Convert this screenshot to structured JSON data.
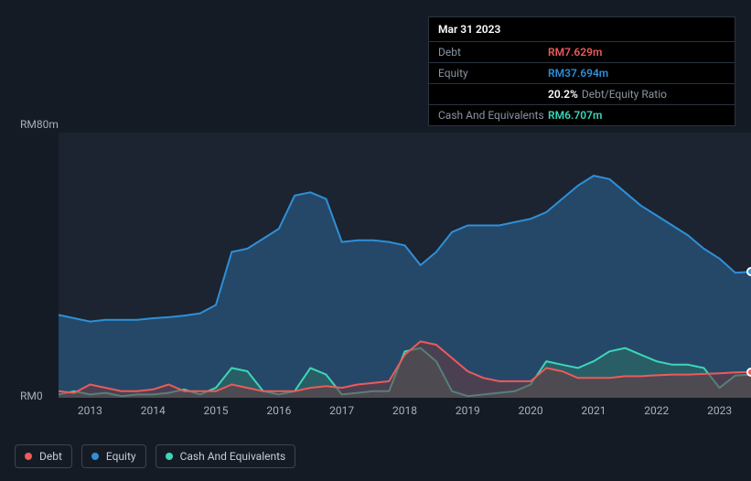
{
  "tooltip": {
    "date": "Mar 31 2023",
    "rows": [
      {
        "label": "Debt",
        "value": "RM7.629m",
        "cls": "v-debt"
      },
      {
        "label": "Equity",
        "value": "RM37.694m",
        "cls": "v-equity"
      },
      {
        "label": "",
        "value": "20.2%",
        "suffix": "Debt/Equity Ratio",
        "cls": "v-ratio-pct"
      },
      {
        "label": "Cash And Equivalents",
        "value": "RM6.707m",
        "cls": "v-cash"
      }
    ]
  },
  "chart": {
    "type": "area",
    "background_color": "#1b2430",
    "page_background": "#151b24",
    "y_axis": {
      "labels": [
        "RM80m",
        "RM0"
      ],
      "lim": [
        0,
        80
      ],
      "fontsize": 12,
      "color": "#a6b0bf"
    },
    "x_axis": {
      "years": [
        2013,
        2014,
        2015,
        2016,
        2017,
        2018,
        2019,
        2020,
        2021,
        2022,
        2023
      ],
      "range": [
        2012.5,
        2023.5
      ],
      "fontsize": 12,
      "color": "#a6b0bf"
    },
    "series": [
      {
        "name": "Equity",
        "stroke": "#2f8fd8",
        "fill": "#29547b",
        "fill_opacity": 0.75,
        "line_width": 2,
        "data": [
          [
            2012.5,
            25
          ],
          [
            2012.75,
            24
          ],
          [
            2013.0,
            23
          ],
          [
            2013.25,
            23.5
          ],
          [
            2013.5,
            23.5
          ],
          [
            2013.75,
            23.5
          ],
          [
            2014.0,
            24
          ],
          [
            2014.25,
            24.3
          ],
          [
            2014.5,
            24.8
          ],
          [
            2014.75,
            25.5
          ],
          [
            2015.0,
            28
          ],
          [
            2015.25,
            44
          ],
          [
            2015.5,
            45
          ],
          [
            2015.75,
            48
          ],
          [
            2016.0,
            51
          ],
          [
            2016.25,
            61
          ],
          [
            2016.5,
            62
          ],
          [
            2016.75,
            60
          ],
          [
            2017.0,
            47
          ],
          [
            2017.25,
            47.5
          ],
          [
            2017.5,
            47.5
          ],
          [
            2017.75,
            47
          ],
          [
            2018.0,
            46
          ],
          [
            2018.25,
            40
          ],
          [
            2018.5,
            44
          ],
          [
            2018.75,
            50
          ],
          [
            2019.0,
            52
          ],
          [
            2019.25,
            52
          ],
          [
            2019.5,
            52
          ],
          [
            2019.75,
            53
          ],
          [
            2020.0,
            54
          ],
          [
            2020.25,
            56
          ],
          [
            2020.5,
            60
          ],
          [
            2020.75,
            64
          ],
          [
            2021.0,
            67
          ],
          [
            2021.25,
            66
          ],
          [
            2021.5,
            62
          ],
          [
            2021.75,
            58
          ],
          [
            2022.0,
            55
          ],
          [
            2022.25,
            52
          ],
          [
            2022.5,
            49
          ],
          [
            2022.75,
            45
          ],
          [
            2023.0,
            42
          ],
          [
            2023.25,
            37.7
          ],
          [
            2023.5,
            38
          ]
        ]
      },
      {
        "name": "Cash And Equivalents",
        "stroke": "#3dd6b8",
        "fill": "#2b6a65",
        "fill_opacity": 0.65,
        "line_width": 2,
        "data": [
          [
            2012.5,
            1
          ],
          [
            2012.75,
            2
          ],
          [
            2013.0,
            1
          ],
          [
            2013.25,
            1.5
          ],
          [
            2013.5,
            0.5
          ],
          [
            2013.75,
            1
          ],
          [
            2014.0,
            1
          ],
          [
            2014.25,
            1.5
          ],
          [
            2014.5,
            2.5
          ],
          [
            2014.75,
            1
          ],
          [
            2015.0,
            3
          ],
          [
            2015.25,
            9
          ],
          [
            2015.5,
            8
          ],
          [
            2015.75,
            2
          ],
          [
            2016.0,
            1
          ],
          [
            2016.25,
            2
          ],
          [
            2016.5,
            9
          ],
          [
            2016.75,
            7
          ],
          [
            2017.0,
            1
          ],
          [
            2017.25,
            1.5
          ],
          [
            2017.5,
            2
          ],
          [
            2017.75,
            2
          ],
          [
            2018.0,
            14
          ],
          [
            2018.25,
            15
          ],
          [
            2018.5,
            11
          ],
          [
            2018.75,
            2
          ],
          [
            2019.0,
            0.5
          ],
          [
            2019.25,
            1
          ],
          [
            2019.5,
            1.5
          ],
          [
            2019.75,
            2
          ],
          [
            2020.0,
            4
          ],
          [
            2020.25,
            11
          ],
          [
            2020.5,
            10
          ],
          [
            2020.75,
            9
          ],
          [
            2021.0,
            11
          ],
          [
            2021.25,
            14
          ],
          [
            2021.5,
            15
          ],
          [
            2021.75,
            13
          ],
          [
            2022.0,
            11
          ],
          [
            2022.25,
            10
          ],
          [
            2022.5,
            10
          ],
          [
            2022.75,
            9
          ],
          [
            2023.0,
            3
          ],
          [
            2023.25,
            6.7
          ],
          [
            2023.5,
            7
          ]
        ]
      },
      {
        "name": "Debt",
        "stroke": "#eb5b5b",
        "fill": "#6b3a3f",
        "fill_opacity": 0.55,
        "line_width": 2,
        "data": [
          [
            2012.5,
            2
          ],
          [
            2012.75,
            1.5
          ],
          [
            2013.0,
            4
          ],
          [
            2013.25,
            3
          ],
          [
            2013.5,
            2
          ],
          [
            2013.75,
            2
          ],
          [
            2014.0,
            2.5
          ],
          [
            2014.25,
            4
          ],
          [
            2014.5,
            2
          ],
          [
            2014.75,
            2
          ],
          [
            2015.0,
            2
          ],
          [
            2015.25,
            4
          ],
          [
            2015.5,
            3
          ],
          [
            2015.75,
            2
          ],
          [
            2016.0,
            2
          ],
          [
            2016.25,
            2
          ],
          [
            2016.5,
            3
          ],
          [
            2016.75,
            3.5
          ],
          [
            2017.0,
            3
          ],
          [
            2017.25,
            4
          ],
          [
            2017.5,
            4.5
          ],
          [
            2017.75,
            5
          ],
          [
            2018.0,
            13
          ],
          [
            2018.25,
            17
          ],
          [
            2018.5,
            16
          ],
          [
            2018.75,
            12
          ],
          [
            2019.0,
            8
          ],
          [
            2019.25,
            6
          ],
          [
            2019.5,
            5
          ],
          [
            2019.75,
            5
          ],
          [
            2020.0,
            5
          ],
          [
            2020.25,
            9
          ],
          [
            2020.5,
            8
          ],
          [
            2020.75,
            6
          ],
          [
            2021.0,
            6
          ],
          [
            2021.25,
            6
          ],
          [
            2021.5,
            6.5
          ],
          [
            2021.75,
            6.5
          ],
          [
            2022.0,
            6.8
          ],
          [
            2022.25,
            7
          ],
          [
            2022.5,
            7
          ],
          [
            2022.75,
            7.2
          ],
          [
            2023.0,
            7.4
          ],
          [
            2023.25,
            7.629
          ],
          [
            2023.5,
            7.8
          ]
        ]
      }
    ],
    "markers": [
      {
        "x": 2023.5,
        "y": 38,
        "color": "#2f8fd8"
      },
      {
        "x": 2023.5,
        "y": 7.8,
        "color": "#eb5b5b"
      }
    ]
  },
  "legend": [
    {
      "label": "Debt",
      "color": "#eb5b5b"
    },
    {
      "label": "Equity",
      "color": "#2f8fd8"
    },
    {
      "label": "Cash And Equivalents",
      "color": "#3dd6b8"
    }
  ]
}
